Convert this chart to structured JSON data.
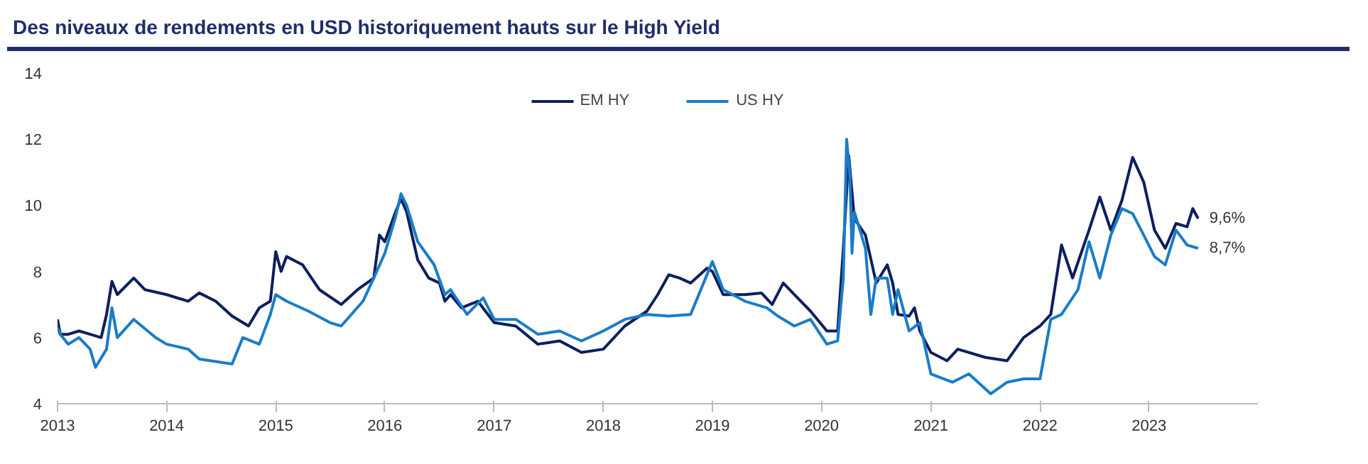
{
  "chart_data": {
    "type": "line",
    "title": "Des niveaux de rendements en USD historiquement hauts sur le High Yield",
    "xlim": [
      "2013-01-01",
      "2023-12-31"
    ],
    "xticks": [
      "2013",
      "2014",
      "2015",
      "2016",
      "2017",
      "2018",
      "2019",
      "2020",
      "2021",
      "2022",
      "2023"
    ],
    "ylim": [
      4,
      14
    ],
    "yticks": [
      4,
      6,
      8,
      10,
      12,
      14
    ],
    "grid": false,
    "legend": "top",
    "line_style": "solid",
    "marker": "none",
    "series": [
      {
        "name": "EM HY",
        "color": "#0d1f5c",
        "x": [
          "2013-01-01",
          "2013-01-10",
          "2013-02-06",
          "2013-03-14",
          "2013-04-20",
          "2013-05-27",
          "2013-06-14",
          "2013-07-02",
          "2013-07-20",
          "2013-09-13",
          "2013-10-20",
          "2014-01-01",
          "2014-03-14",
          "2014-04-20",
          "2014-06-14",
          "2014-08-08",
          "2014-10-02",
          "2014-11-07",
          "2014-12-14",
          "2015-01-01",
          "2015-01-19",
          "2015-02-06",
          "2015-04-01",
          "2015-05-27",
          "2015-08-08",
          "2015-10-02",
          "2015-11-25",
          "2015-12-14",
          "2016-01-01",
          "2016-02-06",
          "2016-02-24",
          "2016-03-14",
          "2016-04-20",
          "2016-05-27",
          "2016-07-02",
          "2016-07-20",
          "2016-08-08",
          "2016-09-13",
          "2016-11-07",
          "2017-01-01",
          "2017-03-14",
          "2017-05-27",
          "2017-08-08",
          "2017-10-20",
          "2018-01-01",
          "2018-03-14",
          "2018-05-27",
          "2018-07-02",
          "2018-08-08",
          "2018-09-13",
          "2018-10-20",
          "2018-12-14",
          "2019-01-01",
          "2019-02-06",
          "2019-04-20",
          "2019-06-14",
          "2019-07-20",
          "2019-08-26",
          "2019-10-02",
          "2019-11-25",
          "2020-01-19",
          "2020-02-24",
          "2020-03-14",
          "2020-04-01",
          "2020-04-20",
          "2020-05-27",
          "2020-07-02",
          "2020-08-08",
          "2020-08-26",
          "2020-09-13",
          "2020-10-20",
          "2020-11-07",
          "2020-11-25",
          "2021-01-01",
          "2021-02-24",
          "2021-04-01",
          "2021-07-02",
          "2021-09-13",
          "2021-11-07",
          "2022-01-01",
          "2022-02-06",
          "2022-03-14",
          "2022-04-20",
          "2022-06-14",
          "2022-07-20",
          "2022-08-26",
          "2022-10-02",
          "2022-11-07",
          "2022-12-14",
          "2023-01-19",
          "2023-02-24",
          "2023-04-01",
          "2023-05-08",
          "2023-05-27",
          "2023-06-14"
        ],
        "values": [
          6.55,
          6.1,
          6.1,
          6.2,
          6.1,
          6.0,
          6.7,
          7.7,
          7.3,
          7.8,
          7.45,
          7.3,
          7.1,
          7.35,
          7.1,
          6.65,
          6.35,
          6.9,
          7.1,
          8.6,
          8.0,
          8.45,
          8.2,
          7.45,
          7.0,
          7.45,
          7.8,
          9.1,
          8.9,
          9.8,
          10.2,
          9.8,
          8.35,
          7.8,
          7.65,
          7.1,
          7.3,
          6.9,
          7.1,
          6.45,
          6.35,
          5.8,
          5.9,
          5.55,
          5.65,
          6.35,
          6.8,
          7.3,
          7.9,
          7.8,
          7.65,
          8.1,
          8.0,
          7.3,
          7.3,
          7.35,
          7.0,
          7.65,
          7.3,
          6.8,
          6.2,
          6.2,
          8.7,
          11.5,
          9.6,
          9.1,
          7.65,
          8.2,
          7.65,
          6.7,
          6.65,
          6.9,
          6.2,
          5.55,
          5.3,
          5.65,
          5.4,
          5.3,
          6.0,
          6.35,
          6.7,
          8.8,
          7.8,
          9.25,
          10.25,
          9.25,
          10.15,
          11.45,
          10.7,
          9.25,
          8.7,
          9.45,
          9.35,
          9.9,
          9.6
        ]
      },
      {
        "name": "US HY",
        "color": "#1a7cc7",
        "x": [
          "2013-01-01",
          "2013-01-10",
          "2013-02-06",
          "2013-03-14",
          "2013-04-20",
          "2013-05-08",
          "2013-06-14",
          "2013-07-02",
          "2013-07-20",
          "2013-09-13",
          "2013-11-25",
          "2014-01-01",
          "2014-03-14",
          "2014-04-20",
          "2014-07-02",
          "2014-08-08",
          "2014-09-13",
          "2014-11-07",
          "2014-12-14",
          "2015-01-01",
          "2015-02-06",
          "2015-04-20",
          "2015-07-02",
          "2015-08-08",
          "2015-10-20",
          "2015-11-25",
          "2016-01-01",
          "2016-02-06",
          "2016-02-24",
          "2016-03-14",
          "2016-04-20",
          "2016-06-14",
          "2016-07-20",
          "2016-08-08",
          "2016-10-02",
          "2016-11-25",
          "2017-01-01",
          "2017-03-14",
          "2017-05-27",
          "2017-08-08",
          "2017-10-20",
          "2018-01-01",
          "2018-03-14",
          "2018-05-27",
          "2018-08-08",
          "2018-10-20",
          "2019-01-01",
          "2019-02-06",
          "2019-04-20",
          "2019-07-02",
          "2019-08-08",
          "2019-10-02",
          "2019-11-25",
          "2020-01-19",
          "2020-02-24",
          "2020-03-14",
          "2020-03-25",
          "2020-04-05",
          "2020-04-12",
          "2020-04-20",
          "2020-05-27",
          "2020-06-14",
          "2020-07-02",
          "2020-08-08",
          "2020-08-26",
          "2020-09-13",
          "2020-10-20",
          "2020-11-25",
          "2021-01-01",
          "2021-03-14",
          "2021-05-08",
          "2021-07-20",
          "2021-09-13",
          "2021-11-07",
          "2022-01-01",
          "2022-02-06",
          "2022-03-14",
          "2022-05-08",
          "2022-06-14",
          "2022-07-20",
          "2022-08-26",
          "2022-10-02",
          "2022-11-07",
          "2022-12-14",
          "2023-01-19",
          "2023-02-24",
          "2023-04-01",
          "2023-05-08",
          "2023-06-14"
        ],
        "values": [
          6.3,
          6.1,
          5.8,
          6.0,
          5.65,
          5.1,
          5.65,
          6.9,
          6.0,
          6.55,
          6.0,
          5.8,
          5.65,
          5.35,
          5.25,
          5.2,
          6.0,
          5.8,
          6.7,
          7.3,
          7.1,
          6.8,
          6.45,
          6.35,
          7.1,
          7.8,
          8.55,
          9.65,
          10.35,
          10.0,
          8.9,
          8.2,
          7.3,
          7.45,
          6.7,
          7.2,
          6.55,
          6.55,
          6.1,
          6.2,
          5.9,
          6.2,
          6.55,
          6.7,
          6.65,
          6.7,
          8.3,
          7.45,
          7.1,
          6.9,
          6.65,
          6.35,
          6.55,
          5.8,
          5.9,
          7.8,
          12.0,
          10.9,
          8.55,
          9.8,
          8.7,
          6.7,
          7.8,
          7.8,
          6.7,
          7.45,
          6.2,
          6.45,
          4.9,
          4.65,
          4.9,
          4.3,
          4.65,
          4.75,
          4.75,
          6.55,
          6.7,
          7.45,
          8.9,
          7.8,
          9.1,
          9.9,
          9.75,
          9.1,
          8.45,
          8.2,
          9.25,
          8.8,
          8.7
        ]
      }
    ],
    "annotations": [
      {
        "text": "9,6%",
        "x": "2023-06-14",
        "y": 9.6
      },
      {
        "text": "8,7%",
        "x": "2023-06-14",
        "y": 8.7
      }
    ]
  }
}
